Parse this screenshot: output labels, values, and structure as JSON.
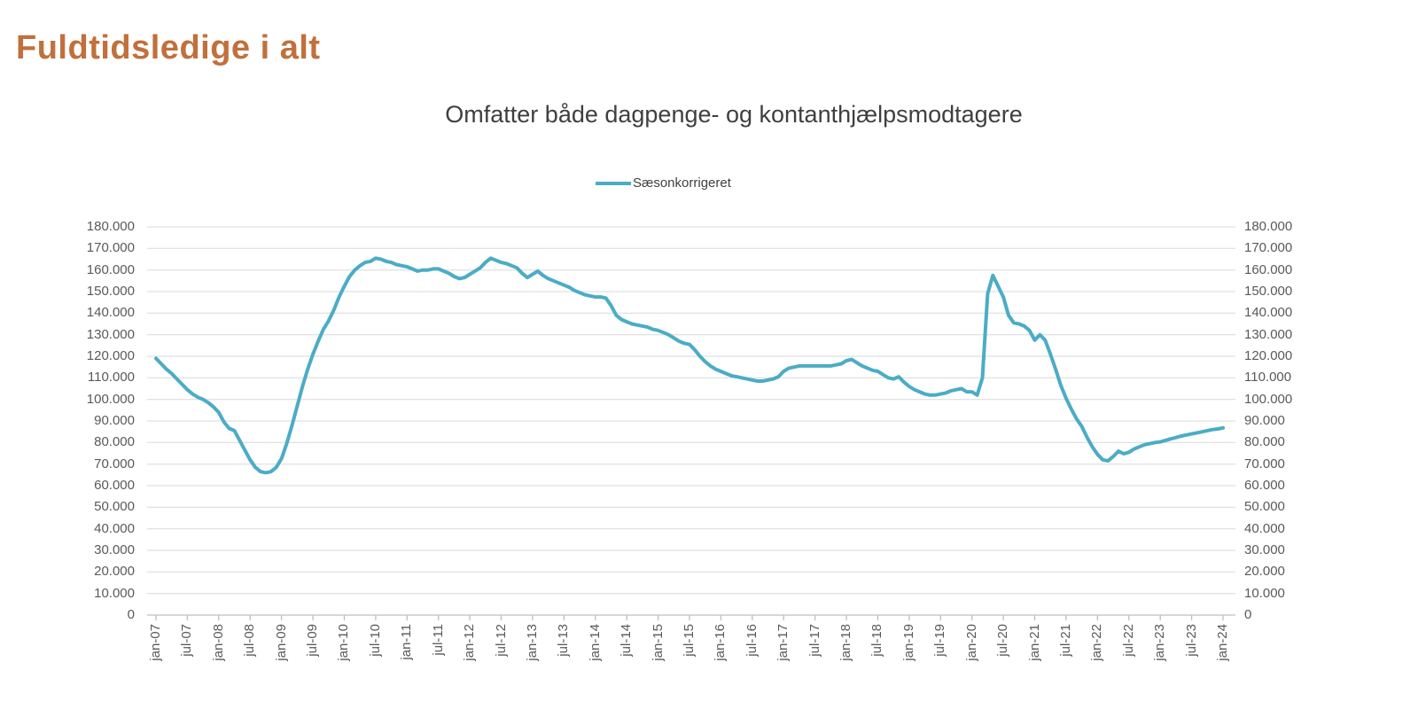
{
  "page": {
    "title": "Fuldtidsledige i alt"
  },
  "colors": {
    "title_text": "#C1703C",
    "subtitle_text": "#3F3F3F",
    "legend_text": "#404040",
    "axis_text": "#595959",
    "gridline": "#D9D9D9",
    "axis_line": "#BFBFBF",
    "series_line": "#4BACC6",
    "background": "#FFFFFF"
  },
  "chart_data": {
    "type": "line",
    "title": "Omfatter både dagpenge- og kontanthjælpsmodtagere",
    "legend": [
      {
        "label": "Sæsonkorrigeret",
        "marker": "line",
        "color": "#4BACC6"
      }
    ],
    "legend_position": "top-center",
    "grid": true,
    "dual_y_axis": true,
    "ylim": [
      0,
      180000
    ],
    "y_tick_step": 10000,
    "y_tick_labels_top_to_bottom": [
      "180.000",
      "170.000",
      "160.000",
      "150.000",
      "140.000",
      "130.000",
      "120.000",
      "110.000",
      "100.000",
      "90.000",
      "80.000",
      "70.000",
      "60.000",
      "50.000",
      "40.000",
      "30.000",
      "20.000",
      "10.000",
      "0"
    ],
    "x_interval": "monthly",
    "x_start": "jan-07",
    "x_end": "jan-24",
    "x_tick_labels": [
      "jan-07",
      "jul-07",
      "jan-08",
      "jul-08",
      "jan-09",
      "jul-09",
      "jan-10",
      "jul-10",
      "jan-11",
      "jul-11",
      "jan-12",
      "jul-12",
      "jan-13",
      "jul-13",
      "jan-14",
      "jul-14",
      "jan-15",
      "jul-15",
      "jan-16",
      "jul-16",
      "jan-17",
      "jul-17",
      "jan-18",
      "jul-18",
      "jan-19",
      "jul-19",
      "jan-20",
      "jul-20",
      "jan-21",
      "jul-21",
      "jan-22",
      "jul-22",
      "jan-23",
      "jul-23",
      "jan-24"
    ],
    "x_ticks_every_n_months": 6,
    "series": [
      {
        "name": "Sæsonkorrigeret",
        "color": "#4BACC6",
        "values": [
          119000,
          116500,
          114000,
          112000,
          109500,
          107000,
          104500,
          102500,
          101000,
          100000,
          98500,
          96500,
          94000,
          89500,
          86500,
          85500,
          81000,
          76500,
          72000,
          68500,
          66500,
          66000,
          66500,
          68500,
          72500,
          79500,
          88000,
          97000,
          106000,
          114000,
          121000,
          127000,
          132500,
          136500,
          141500,
          147500,
          152500,
          157000,
          160000,
          162000,
          163500,
          164000,
          165500,
          165000,
          164000,
          163500,
          162500,
          162000,
          161500,
          160500,
          159500,
          160000,
          160000,
          160500,
          160500,
          159500,
          158500,
          157000,
          156000,
          156500,
          158000,
          159500,
          161000,
          163500,
          165500,
          164500,
          163500,
          163000,
          162000,
          161000,
          158500,
          156500,
          158000,
          159500,
          157500,
          156000,
          155000,
          154000,
          153000,
          152000,
          150500,
          149500,
          148500,
          148000,
          147500,
          147500,
          147000,
          143500,
          139000,
          137000,
          136000,
          135000,
          134500,
          134000,
          133500,
          132500,
          132000,
          131000,
          130000,
          128500,
          127000,
          126000,
          125500,
          123000,
          120000,
          117500,
          115500,
          114000,
          113000,
          112000,
          111000,
          110500,
          110000,
          109500,
          109000,
          108500,
          108500,
          109000,
          109500,
          110500,
          113000,
          114500,
          115000,
          115500,
          115500,
          115500,
          115500,
          115500,
          115500,
          115500,
          116000,
          116500,
          118000,
          118500,
          117000,
          115500,
          114500,
          113500,
          113000,
          111500,
          110000,
          109500,
          110500,
          108000,
          106000,
          104500,
          103500,
          102500,
          102000,
          102000,
          102500,
          103000,
          104000,
          104500,
          105000,
          103500,
          103500,
          102000,
          110000,
          149000,
          157500,
          152500,
          147500,
          139000,
          135500,
          135000,
          134000,
          132000,
          127500,
          130000,
          127500,
          121000,
          114000,
          106500,
          100500,
          95500,
          91000,
          87500,
          82500,
          78000,
          74500,
          72000,
          71500,
          73500,
          76000,
          74800,
          75500,
          77000,
          78000,
          79000,
          79500,
          80000,
          80300,
          81000,
          81700,
          82300,
          83000,
          83500,
          84000,
          84500,
          85000,
          85500,
          86000,
          86300,
          86800
        ]
      }
    ]
  }
}
